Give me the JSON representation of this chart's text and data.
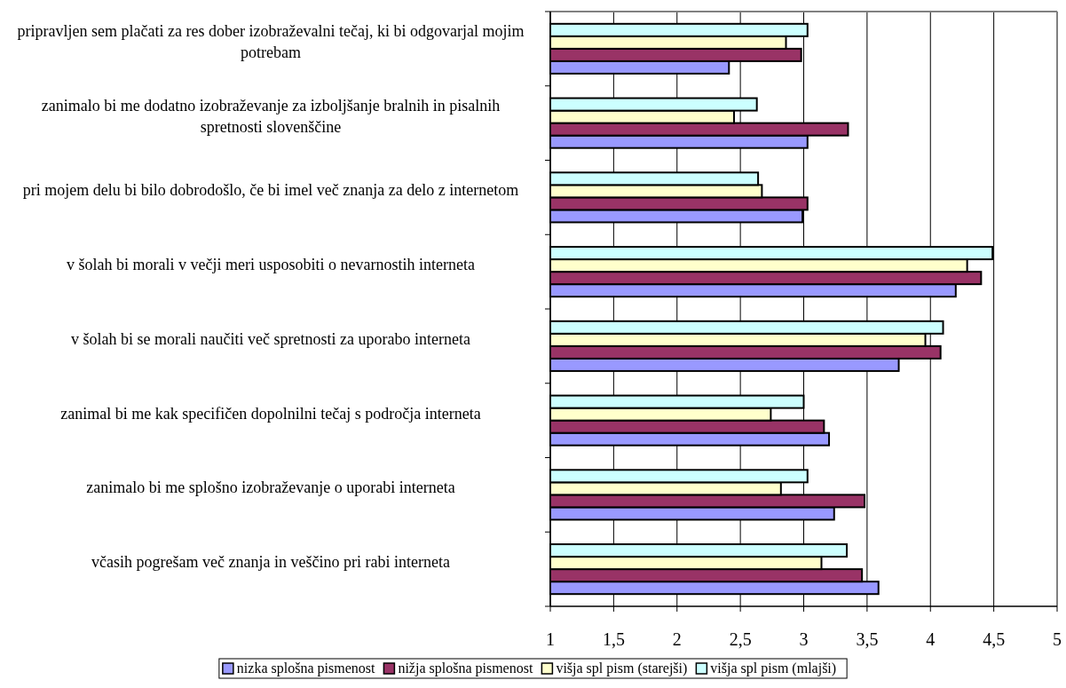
{
  "chart_data": {
    "type": "bar",
    "orientation": "horizontal",
    "categories": [
      "pripravljen sem plačati za res dober izobraževalni tečaj, ki bi odgovarjal mojim potrebam",
      "zanimalo bi me dodatno izobraževanje za izboljšanje bralnih in pisalnih spretnosti slovenščine",
      "pri mojem delu bi bilo dobrodošlo, če bi imel več znanja za delo z internetom",
      "v šolah bi morali v večji meri usposobiti o nevarnostih interneta",
      "v šolah bi se morali naučiti več spretnosti za uporabo interneta",
      "zanimal bi me kak specifičen dopolnilni tečaj s področja interneta",
      "zanimalo bi me splošno izobraževanje o uporabi interneta",
      "včasih pogrešam več znanja in veščino pri rabi interneta"
    ],
    "series": [
      {
        "name": "nizka splošna pismenost",
        "color": "#9999ff",
        "values": [
          2.41,
          3.03,
          2.99,
          4.2,
          3.75,
          3.2,
          3.24,
          3.59
        ]
      },
      {
        "name": "nižja splošna pismenost",
        "color": "#993366",
        "values": [
          2.98,
          3.35,
          3.03,
          4.4,
          4.08,
          3.16,
          3.48,
          3.46
        ]
      },
      {
        "name": "višja spl pism (starejši)",
        "color": "#ffffcc",
        "values": [
          2.86,
          2.45,
          2.67,
          4.29,
          3.96,
          2.74,
          2.82,
          3.14
        ]
      },
      {
        "name": "višja spl pism (mlajši)",
        "color": "#ccffff",
        "values": [
          3.03,
          2.63,
          2.64,
          4.49,
          4.1,
          3.0,
          3.03,
          3.34
        ]
      }
    ],
    "xlim": [
      1,
      5
    ],
    "xticks": [
      1,
      {
        "value": 1.5,
        "label": "1,5"
      },
      2,
      {
        "value": 2.5,
        "label": "2,5"
      },
      3,
      {
        "value": 3.5,
        "label": "3,5"
      },
      4,
      {
        "value": 4.5,
        "label": "4,5"
      },
      5
    ],
    "grid": "x",
    "legend": "bottom"
  }
}
